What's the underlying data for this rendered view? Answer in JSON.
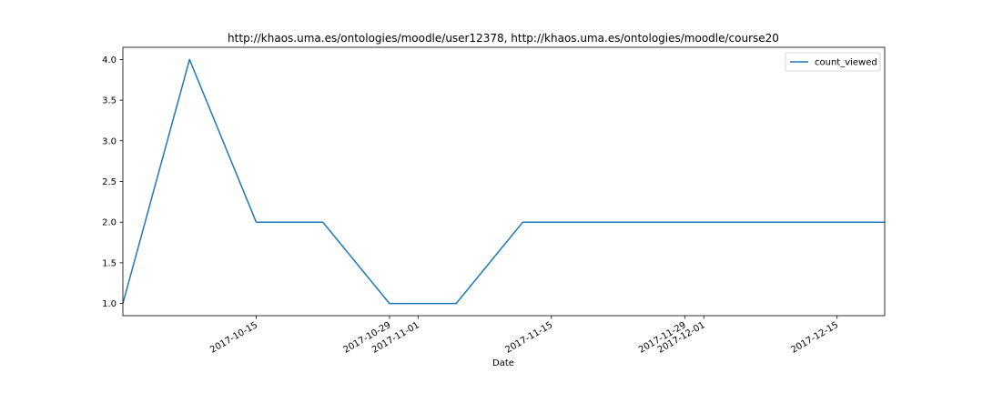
{
  "chart_data": {
    "type": "line",
    "title": "http://khaos.uma.es/ontologies/moodle/user12378, http://khaos.uma.es/ontologies/moodle/course20",
    "xlabel": "Date",
    "ylabel": "",
    "x_type": "date",
    "xlim": [
      "2017-10-01",
      "2017-12-20"
    ],
    "ylim": [
      0.85,
      4.15
    ],
    "yticks": [
      1.0,
      1.5,
      2.0,
      2.5,
      3.0,
      3.5,
      4.0
    ],
    "ytick_labels": [
      "1.0",
      "1.5",
      "2.0",
      "2.5",
      "3.0",
      "3.5",
      "4.0"
    ],
    "xticks": [
      "2017-10-15",
      "2017-10-29",
      "2017-11-01",
      "2017-11-15",
      "2017-11-29",
      "2017-12-01",
      "2017-12-15"
    ],
    "xtick_labels": [
      "2017-10-15",
      "2017-10-29",
      "2017-11-01",
      "2017-11-15",
      "2017-11-29",
      "2017-12-01",
      "2017-12-15"
    ],
    "series": [
      {
        "name": "count_viewed",
        "color": "#1f77b4",
        "x": [
          "2017-10-01",
          "2017-10-08",
          "2017-10-15",
          "2017-10-22",
          "2017-10-29",
          "2017-11-05",
          "2017-11-12",
          "2017-11-19",
          "2017-11-26",
          "2017-12-03",
          "2017-12-10",
          "2017-12-17",
          "2017-12-20"
        ],
        "y": [
          1,
          4,
          2,
          2,
          1,
          1,
          2,
          2,
          2,
          2,
          2,
          2,
          2
        ]
      }
    ],
    "legend": {
      "position": "top-right"
    },
    "grid": false
  }
}
